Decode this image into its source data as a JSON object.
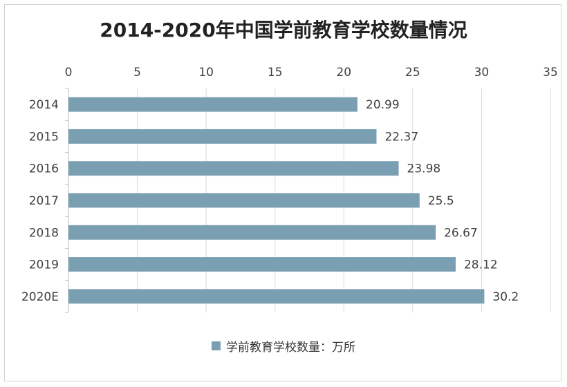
{
  "colors": {
    "bar": "#7a9fb2",
    "grid": "#d9d9d9",
    "text": "#404040"
  },
  "chart_data": {
    "type": "bar",
    "orientation": "horizontal",
    "title": "2014-2020年中国学前教育学校数量情况",
    "categories": [
      "2014",
      "2015",
      "2016",
      "2017",
      "2018",
      "2019",
      "2020E"
    ],
    "series": [
      {
        "name": "学前教育学校数量：万所",
        "values": [
          20.99,
          22.37,
          23.98,
          25.5,
          26.67,
          28.12,
          30.2
        ]
      }
    ],
    "data_labels": [
      "20.99",
      "22.37",
      "23.98",
      "25.5",
      "26.67",
      "28.12",
      "30.2"
    ],
    "xlim": [
      0,
      35
    ],
    "xticks": [
      0,
      5,
      10,
      15,
      20,
      25,
      30,
      35
    ],
    "x_axis_position": "top",
    "grid": true,
    "legend": "bottom"
  }
}
